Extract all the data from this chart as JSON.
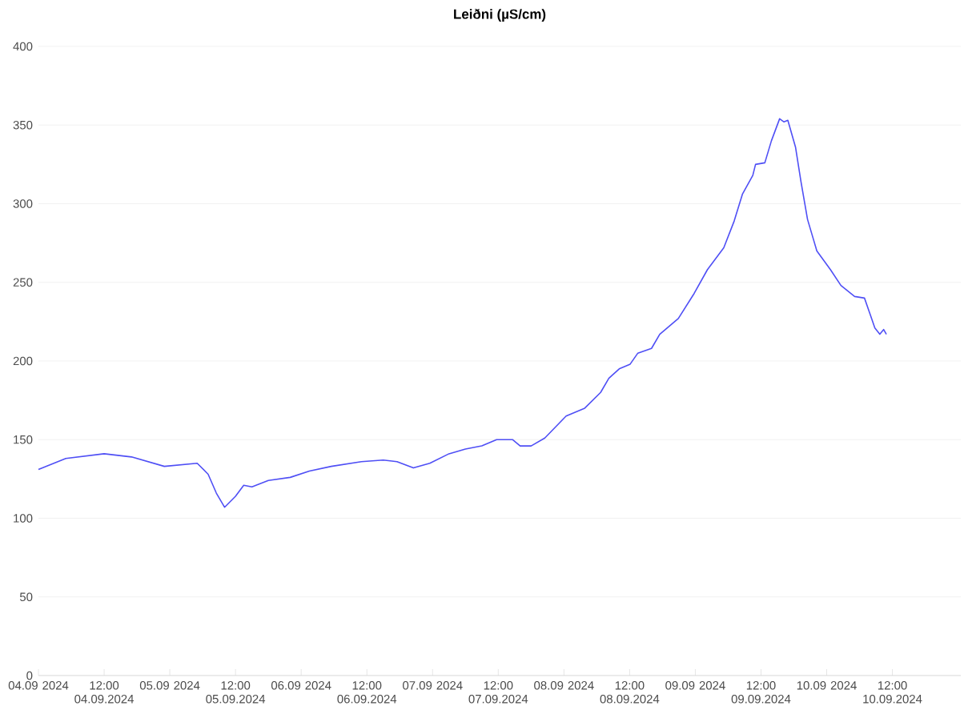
{
  "chart_data": {
    "type": "line",
    "title": "Leiðni (µS/cm)",
    "x": [
      "2024-09-04T00:00",
      "2024-09-04T05:00",
      "2024-09-04T12:00",
      "2024-09-04T17:00",
      "2024-09-04T23:00",
      "2024-09-05T05:00",
      "2024-09-05T07:00",
      "2024-09-05T08:30",
      "2024-09-05T10:00",
      "2024-09-05T12:00",
      "2024-09-05T13:30",
      "2024-09-05T15:00",
      "2024-09-05T18:00",
      "2024-09-05T22:00",
      "2024-09-06T01:30",
      "2024-09-06T05:30",
      "2024-09-06T11:00",
      "2024-09-06T15:00",
      "2024-09-06T17:30",
      "2024-09-06T20:30",
      "2024-09-06T23:30",
      "2024-09-07T03:00",
      "2024-09-07T06:00",
      "2024-09-07T09:00",
      "2024-09-07T11:42",
      "2024-09-07T14:36",
      "2024-09-07T16:00",
      "2024-09-07T18:00",
      "2024-09-07T20:30",
      "2024-09-08T00:24",
      "2024-09-08T03:48",
      "2024-09-08T06:42",
      "2024-09-08T08:12",
      "2024-09-08T10:06",
      "2024-09-08T12:06",
      "2024-09-08T13:30",
      "2024-09-08T16:00",
      "2024-09-08T17:30",
      "2024-09-08T20:54",
      "2024-09-08T23:48",
      "2024-09-09T02:12",
      "2024-09-09T05:12",
      "2024-09-09T07:06",
      "2024-09-09T08:36",
      "2024-09-09T10:30",
      "2024-09-09T11:00",
      "2024-09-09T12:42",
      "2024-09-09T13:54",
      "2024-09-09T15:24",
      "2024-09-09T16:12",
      "2024-09-09T16:54",
      "2024-09-09T18:18",
      "2024-09-09T19:18",
      "2024-09-09T20:30",
      "2024-09-09T22:12",
      "2024-09-10T00:42",
      "2024-09-10T02:36",
      "2024-09-10T05:06",
      "2024-09-10T06:54",
      "2024-09-10T07:48",
      "2024-09-10T08:48",
      "2024-09-10T09:42",
      "2024-09-10T10:24",
      "2024-09-10T10:54"
    ],
    "series": [
      {
        "color": "#4f4ff5",
        "values": [
          131,
          138,
          141,
          139,
          133,
          135,
          128,
          116,
          107,
          114,
          121,
          120,
          124,
          126,
          130,
          133,
          136,
          137,
          136,
          132,
          135,
          141,
          144,
          146,
          150,
          150,
          146,
          146,
          151,
          165,
          170,
          180,
          189,
          195,
          198,
          205,
          208,
          217,
          227,
          243,
          258,
          272,
          289,
          306,
          318,
          325,
          326,
          340,
          354,
          352,
          353,
          336,
          314,
          290,
          270,
          258,
          248,
          241,
          240,
          231,
          221,
          217,
          220,
          217
        ]
      }
    ],
    "xlim": [
      "2024-09-04T00:00",
      "2024-09-11T00:30"
    ],
    "xticks": [
      {
        "value": "2024-09-04T00:00",
        "label": "04.09 2024"
      },
      {
        "value": "2024-09-04T12:00",
        "label": "12:00 04.09.2024"
      },
      {
        "value": "2024-09-05T00:00",
        "label": "05.09 2024"
      },
      {
        "value": "2024-09-05T12:00",
        "label": "12:00 05.09.2024"
      },
      {
        "value": "2024-09-06T00:00",
        "label": "06.09 2024"
      },
      {
        "value": "2024-09-06T12:00",
        "label": "12:00 06.09.2024"
      },
      {
        "value": "2024-09-07T00:00",
        "label": "07.09 2024"
      },
      {
        "value": "2024-09-07T12:00",
        "label": "12:00 07.09.2024"
      },
      {
        "value": "2024-09-08T00:00",
        "label": "08.09 2024"
      },
      {
        "value": "2024-09-08T12:00",
        "label": "12:00 08.09.2024"
      },
      {
        "value": "2024-09-09T00:00",
        "label": "09.09 2024"
      },
      {
        "value": "2024-09-09T12:00",
        "label": "12:00 09.09.2024"
      },
      {
        "value": "2024-09-10T00:00",
        "label": "10.09 2024"
      },
      {
        "value": "2024-09-10T12:00",
        "label": "12:00 10.09.2024"
      }
    ],
    "ylim": [
      0,
      400
    ],
    "yticks": [
      0,
      50,
      100,
      150,
      200,
      250,
      300,
      350,
      400
    ],
    "grid": "y",
    "marker": "none",
    "line_style": "solid"
  }
}
